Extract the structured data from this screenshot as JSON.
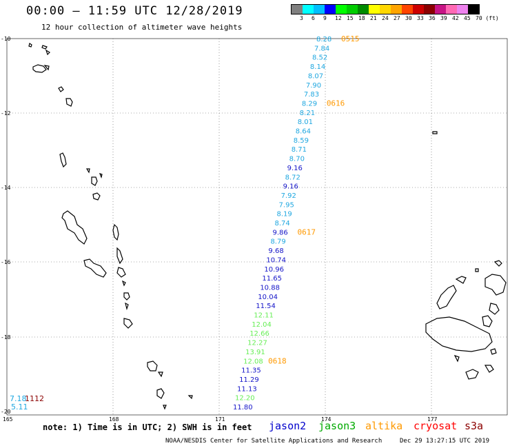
{
  "header": {
    "title": "00:00 — 11:59 UTC 12/28/2019",
    "subtitle": "12 hour collection of altimeter wave heights"
  },
  "legend": {
    "colors": [
      "#808080",
      "#00ffff",
      "#00bfff",
      "#0000ff",
      "#00ff00",
      "#00cd00",
      "#008b00",
      "#ffff00",
      "#ffd700",
      "#ffa500",
      "#ff4500",
      "#cd0000",
      "#8b0000",
      "#c71585",
      "#ff69b4",
      "#ee82ee",
      "#000000"
    ],
    "labels": [
      "3",
      "6",
      "9",
      "12",
      "15",
      "18",
      "21",
      "24",
      "27",
      "30",
      "33",
      "36",
      "39",
      "42",
      "45",
      "70 (ft)"
    ]
  },
  "map": {
    "lat_labels": [
      "-10",
      "-12",
      "-14",
      "-16",
      "-18",
      "-20"
    ],
    "lon_labels": [
      "165",
      "168",
      "171",
      "174",
      "177"
    ],
    "track_color_by_height": {
      "light": "#1fa7e0",
      "dark": "#1414c8",
      "green": "#66ee55"
    },
    "track": [
      {
        "v": "8.28",
        "c": "light"
      },
      {
        "v": "7.84",
        "c": "light"
      },
      {
        "v": "8.52",
        "c": "light"
      },
      {
        "v": "8.14",
        "c": "light"
      },
      {
        "v": "8.07",
        "c": "light"
      },
      {
        "v": "7.90",
        "c": "light"
      },
      {
        "v": "7.83",
        "c": "light"
      },
      {
        "v": "8.29",
        "c": "light"
      },
      {
        "v": "8.21",
        "c": "light"
      },
      {
        "v": "8.01",
        "c": "light"
      },
      {
        "v": "8.64",
        "c": "light"
      },
      {
        "v": "8.59",
        "c": "light"
      },
      {
        "v": "8.71",
        "c": "light"
      },
      {
        "v": "8.70",
        "c": "light"
      },
      {
        "v": "9.16",
        "c": "dark"
      },
      {
        "v": "8.72",
        "c": "light"
      },
      {
        "v": "9.16",
        "c": "dark"
      },
      {
        "v": "7.92",
        "c": "light"
      },
      {
        "v": "7.95",
        "c": "light"
      },
      {
        "v": "8.19",
        "c": "light"
      },
      {
        "v": "8.74",
        "c": "light"
      },
      {
        "v": "9.86",
        "c": "dark"
      },
      {
        "v": "8.79",
        "c": "light"
      },
      {
        "v": "9.68",
        "c": "dark"
      },
      {
        "v": "10.74",
        "c": "dark"
      },
      {
        "v": "10.96",
        "c": "dark"
      },
      {
        "v": "11.65",
        "c": "dark"
      },
      {
        "v": "10.88",
        "c": "dark"
      },
      {
        "v": "10.04",
        "c": "dark"
      },
      {
        "v": "11.54",
        "c": "dark"
      },
      {
        "v": "12.11",
        "c": "green"
      },
      {
        "v": "12.04",
        "c": "green"
      },
      {
        "v": "12.66",
        "c": "green"
      },
      {
        "v": "12.27",
        "c": "green"
      },
      {
        "v": "13.91",
        "c": "green"
      },
      {
        "v": "12.08",
        "c": "green"
      },
      {
        "v": "11.35",
        "c": "dark"
      },
      {
        "v": "11.29",
        "c": "dark"
      },
      {
        "v": "11.13",
        "c": "dark"
      },
      {
        "v": "12.20",
        "c": "green"
      },
      {
        "v": "11.80",
        "c": "dark"
      }
    ],
    "time_labels": [
      {
        "text": "0515",
        "row": 0
      },
      {
        "text": "0616",
        "row": 7
      },
      {
        "text": "0617",
        "row": 21
      },
      {
        "text": "0618",
        "row": 35
      }
    ],
    "time_label_color": "#ff9900",
    "corner_values": [
      {
        "text": "7.18",
        "color": "#1fa7e0"
      },
      {
        "text": "5.11",
        "color": "#1fa7e0"
      },
      {
        "text": "1112",
        "color": "#8b0000"
      }
    ]
  },
  "footer": {
    "note": "note: 1) Time is in UTC; 2) SWH is in feet",
    "satellites": [
      {
        "name": "jason2",
        "color": "#0000cc"
      },
      {
        "name": "jason3",
        "color": "#00aa00"
      },
      {
        "name": "altika",
        "color": "#ff9900"
      },
      {
        "name": "cryosat",
        "color": "#ff0000"
      },
      {
        "name": "s3a",
        "color": "#8b0000"
      }
    ],
    "credit": "NOAA/NESDIS Center for Satellite Applications and Research",
    "timestamp": "Dec 29 13:27:15 UTC 2019"
  }
}
